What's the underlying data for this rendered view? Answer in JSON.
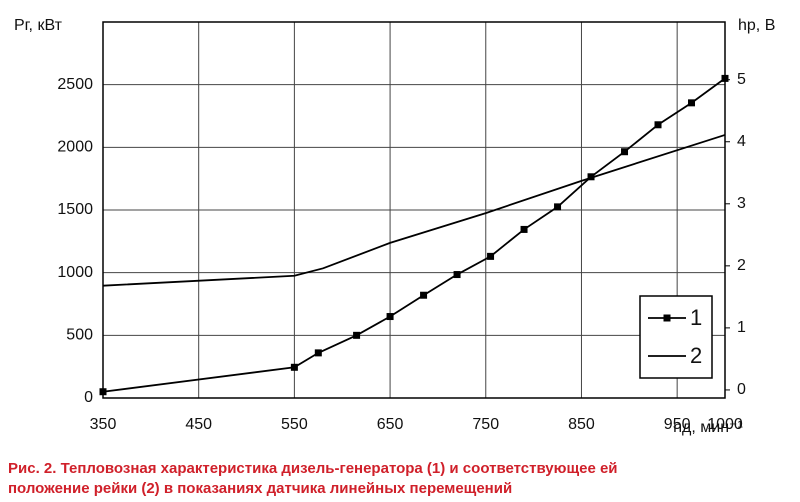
{
  "chart_data": {
    "type": "line",
    "y_label": "Pг, кВт",
    "y2_label": "hр, В",
    "x_label": "nд, мин⁻¹",
    "caption": [
      "Рис. 2. Тепловозная характеристика дизель-генератора (1) и соответствующее ей",
      "положение рейки (2) в показаниях датчика линейных перемещений"
    ],
    "xlim": [
      350,
      1000
    ],
    "xticks": [
      350,
      450,
      550,
      650,
      750,
      850,
      950,
      1000
    ],
    "ylim": [
      0,
      3000
    ],
    "yticks": [
      0,
      500,
      1000,
      1500,
      2000,
      2500
    ],
    "y2lim": [
      -0.13,
      5.93
    ],
    "y2ticks": [
      0,
      1,
      2,
      3,
      4,
      5
    ],
    "grid": true,
    "legend": "lower right",
    "series": [
      {
        "name": "1",
        "color": "#000000",
        "markers": true,
        "x": [
          350,
          550,
          575,
          615,
          650,
          685,
          720,
          755,
          790,
          825,
          860,
          895,
          930,
          965,
          1000
        ],
        "values": [
          50,
          245,
          360,
          500,
          650,
          820,
          985,
          1130,
          1345,
          1525,
          1765,
          1965,
          2180,
          2355,
          2550
        ]
      },
      {
        "name": "2",
        "color": "#000000",
        "markers": false,
        "axis": "y2",
        "x": [
          350,
          550,
          580,
          650,
          750,
          850,
          1000
        ],
        "values": [
          1.68,
          1.84,
          1.96,
          2.37,
          2.85,
          3.37,
          4.11
        ]
      }
    ]
  }
}
